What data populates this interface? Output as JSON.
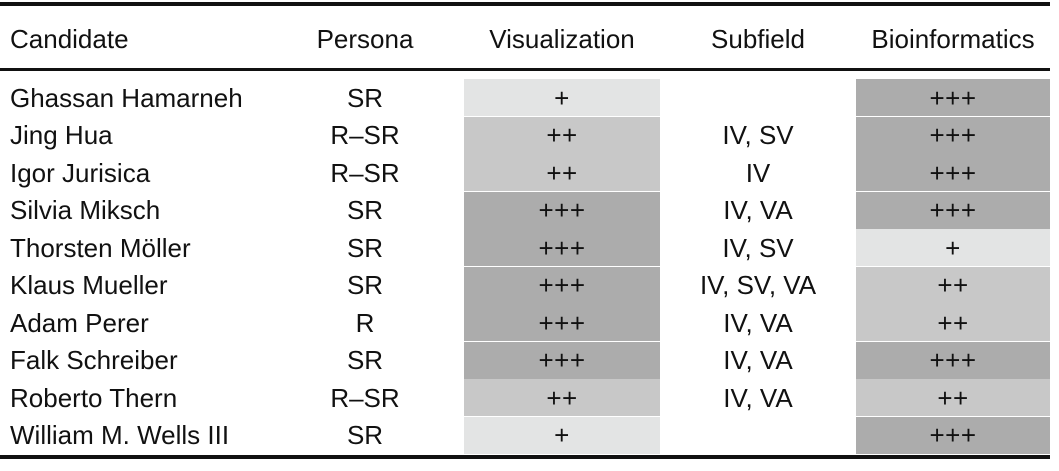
{
  "headers": {
    "candidate": "Candidate",
    "persona": "Persona",
    "visualization": "Visualization",
    "subfield": "Subfield",
    "bioinformatics": "Bioinformatics"
  },
  "level_colors": {
    "+": "#e3e4e4",
    "++": "#c8c8c8",
    "+++": "#acacac"
  },
  "rows": [
    {
      "candidate": "Ghassan Hamarneh",
      "persona": "SR",
      "visualization": "+",
      "subfield": "",
      "bioinformatics": "+++"
    },
    {
      "candidate": "Jing Hua",
      "persona": "R–SR",
      "visualization": "++",
      "subfield": "IV, SV",
      "bioinformatics": "+++"
    },
    {
      "candidate": "Igor Jurisica",
      "persona": "R–SR",
      "visualization": "++",
      "subfield": "IV",
      "bioinformatics": "+++"
    },
    {
      "candidate": "Silvia Miksch",
      "persona": "SR",
      "visualization": "+++",
      "subfield": "IV, VA",
      "bioinformatics": "+++"
    },
    {
      "candidate": "Thorsten Möller",
      "persona": "SR",
      "visualization": "+++",
      "subfield": "IV, SV",
      "bioinformatics": "+"
    },
    {
      "candidate": "Klaus Mueller",
      "persona": "SR",
      "visualization": "+++",
      "subfield": "IV, SV, VA",
      "bioinformatics": "++"
    },
    {
      "candidate": "Adam Perer",
      "persona": "R",
      "visualization": "+++",
      "subfield": "IV, VA",
      "bioinformatics": "++"
    },
    {
      "candidate": "Falk Schreiber",
      "persona": "SR",
      "visualization": "+++",
      "subfield": "IV, VA",
      "bioinformatics": "+++"
    },
    {
      "candidate": "Roberto Thern",
      "persona": "R–SR",
      "visualization": "++",
      "subfield": "IV, VA",
      "bioinformatics": "++"
    },
    {
      "candidate": "William M. Wells III",
      "persona": "SR",
      "visualization": "+",
      "subfield": "",
      "bioinformatics": "+++"
    }
  ]
}
